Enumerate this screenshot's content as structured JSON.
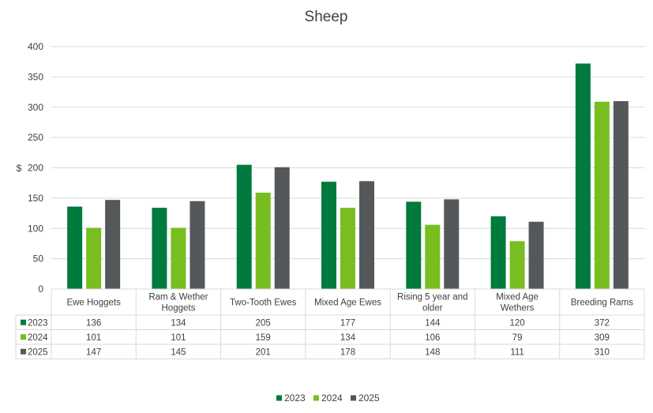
{
  "chart_data": {
    "type": "bar",
    "title": "Sheep",
    "ylabel": "$",
    "ylim": [
      0,
      400
    ],
    "yticks": [
      "0",
      "50",
      "100",
      "150",
      "200",
      "250",
      "300",
      "350",
      "400"
    ],
    "grid": true,
    "legend_position": "bottom",
    "categories": [
      [
        "Ewe Hoggets"
      ],
      [
        "Ram & Wether",
        "Hoggets"
      ],
      [
        "Two-Tooth Ewes"
      ],
      [
        "Mixed Age Ewes"
      ],
      [
        "Rising 5 year and",
        "older"
      ],
      [
        "Mixed Age",
        "Wethers"
      ],
      [
        "Breeding Rams"
      ]
    ],
    "series": [
      {
        "name": "2023",
        "color": "#007A3D",
        "values": [
          136,
          134,
          205,
          177,
          144,
          120,
          372
        ]
      },
      {
        "name": "2024",
        "color": "#78BE21",
        "values": [
          101,
          101,
          159,
          134,
          106,
          79,
          309
        ]
      },
      {
        "name": "2025",
        "color": "#54585A",
        "values": [
          147,
          145,
          201,
          178,
          148,
          111,
          310
        ]
      }
    ]
  }
}
